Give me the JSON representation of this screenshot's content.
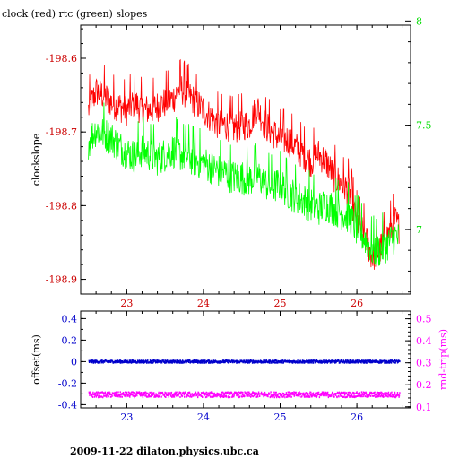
{
  "title": "clock (red) rtc (green) slopes",
  "footer": "2009-11-22  dilaton.physics.ubc.ca",
  "chart_data": [
    {
      "type": "line",
      "name": "upper-panel",
      "ylabel": "clockslope",
      "ylabel2": "",
      "xlim": [
        22.4,
        26.7
      ],
      "ylim": [
        -198.92,
        -198.555
      ],
      "y2lim": [
        6.69,
        7.98
      ],
      "x_ticks": [
        23,
        24,
        25,
        26
      ],
      "y_ticks": [
        -198.6,
        -198.7,
        -198.8,
        -198.9
      ],
      "y_tick_labels": [
        "-198.6",
        "-198.7",
        "-198.8",
        "-198.9"
      ],
      "y2_ticks": [
        7,
        7.5,
        8
      ],
      "y2_tick_labels": [
        "7",
        "7.5",
        "8"
      ],
      "colors": {
        "left_axis": "#cc0000",
        "right_axis": "#00dd00"
      },
      "series": [
        {
          "name": "clock",
          "axis": "left",
          "color": "#ff0000",
          "x": [
            22.5,
            22.6,
            22.7,
            22.8,
            22.9,
            23.0,
            23.1,
            23.2,
            23.3,
            23.4,
            23.5,
            23.6,
            23.7,
            23.8,
            23.9,
            24.0,
            24.1,
            24.2,
            24.3,
            24.4,
            24.5,
            24.6,
            24.7,
            24.8,
            24.9,
            25.0,
            25.1,
            25.2,
            25.3,
            25.4,
            25.5,
            25.6,
            25.7,
            25.8,
            25.9,
            26.0,
            26.1,
            26.2,
            26.3,
            26.4,
            26.5,
            26.55
          ],
          "values": [
            -198.67,
            -198.645,
            -198.65,
            -198.66,
            -198.665,
            -198.67,
            -198.66,
            -198.67,
            -198.67,
            -198.665,
            -198.66,
            -198.655,
            -198.64,
            -198.65,
            -198.66,
            -198.67,
            -198.68,
            -198.69,
            -198.69,
            -198.695,
            -198.69,
            -198.69,
            -198.665,
            -198.69,
            -198.7,
            -198.71,
            -198.71,
            -198.72,
            -198.73,
            -198.74,
            -198.73,
            -198.74,
            -198.76,
            -198.77,
            -198.78,
            -198.82,
            -198.84,
            -198.87,
            -198.86,
            -198.84,
            -198.82,
            -198.83
          ],
          "noise": 0.022
        },
        {
          "name": "rtc",
          "axis": "right",
          "color": "#00ff00",
          "x": [
            22.5,
            22.6,
            22.7,
            22.8,
            22.9,
            23.0,
            23.1,
            23.2,
            23.3,
            23.4,
            23.5,
            23.6,
            23.7,
            23.8,
            23.9,
            24.0,
            24.1,
            24.2,
            24.3,
            24.4,
            24.5,
            24.6,
            24.7,
            24.8,
            24.9,
            25.0,
            25.1,
            25.2,
            25.3,
            25.4,
            25.5,
            25.6,
            25.7,
            25.8,
            25.9,
            26.0,
            26.1,
            26.2,
            26.3,
            26.4,
            26.5,
            26.55
          ],
          "values": [
            7.42,
            7.48,
            7.46,
            7.44,
            7.4,
            7.37,
            7.35,
            7.38,
            7.36,
            7.34,
            7.36,
            7.38,
            7.36,
            7.35,
            7.33,
            7.32,
            7.3,
            7.28,
            7.27,
            7.25,
            7.25,
            7.24,
            7.26,
            7.22,
            7.2,
            7.22,
            7.18,
            7.16,
            7.14,
            7.12,
            7.1,
            7.12,
            7.1,
            7.08,
            7.06,
            7.0,
            6.96,
            6.9,
            6.9,
            6.93,
            6.97,
            6.95
          ],
          "noise": 0.085
        }
      ]
    },
    {
      "type": "scatter",
      "name": "lower-panel",
      "ylabel": "offset(ms)",
      "ylabel2": "rnd-trip(ms)",
      "xlim": [
        22.4,
        26.7
      ],
      "ylim": [
        -0.43,
        0.47
      ],
      "y2lim": [
        0.095,
        0.535
      ],
      "x_ticks": [
        23,
        24,
        25,
        26
      ],
      "y_ticks": [
        0.4,
        0.2,
        0,
        -0.2,
        -0.4
      ],
      "y_tick_labels": [
        "0.4",
        "0.2",
        "0",
        "-0.2",
        "-0.4"
      ],
      "y2_ticks": [
        0.5,
        0.4,
        0.3,
        0.2,
        0.1
      ],
      "y2_tick_labels": [
        "0.5",
        "0.4",
        "0.3",
        "0.2",
        "0.1"
      ],
      "colors": {
        "left_axis": "#0000cc",
        "right_axis": "#ff00ff"
      },
      "series": [
        {
          "name": "offset",
          "axis": "left",
          "color": "#0000cc",
          "x_range": [
            22.5,
            26.55
          ],
          "level": 0.0,
          "spread": 0.012
        },
        {
          "name": "rnd-trip",
          "axis": "right",
          "color": "#ff00ff",
          "x_range": [
            22.5,
            26.55
          ],
          "level": 0.155,
          "spread": 0.012
        }
      ]
    }
  ]
}
